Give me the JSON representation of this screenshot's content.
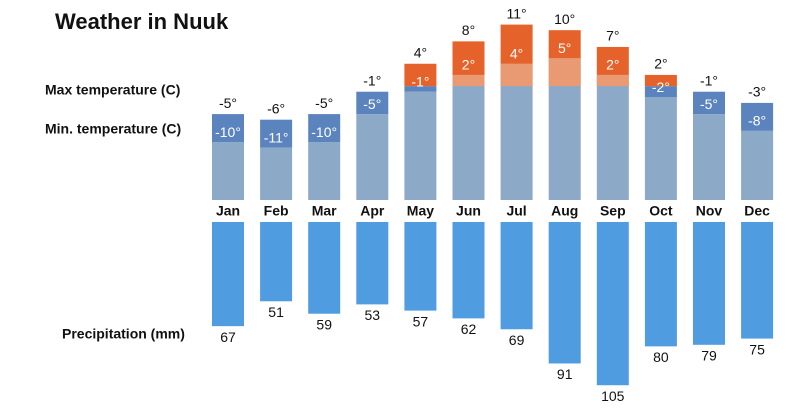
{
  "chart_data": [
    {
      "type": "range-bar",
      "title": "Weather in Nuuk",
      "categories": [
        "Jan",
        "Feb",
        "Mar",
        "Apr",
        "May",
        "Jun",
        "Jul",
        "Aug",
        "Sep",
        "Oct",
        "Nov",
        "Dec"
      ],
      "series": [
        {
          "name": "Max temperature (C)",
          "color": "#e5622a",
          "values": [
            -5,
            -6,
            -5,
            -1,
            4,
            8,
            11,
            10,
            7,
            2,
            -1,
            -3
          ],
          "value_labels": [
            "-5°",
            "-6°",
            "-5°",
            "-1°",
            "4°",
            "8°",
            "11°",
            "10°",
            "7°",
            "2°",
            "-1°",
            "-3°"
          ]
        },
        {
          "name": "Min. temperature (C)",
          "color": "#5b84bf",
          "values": [
            -10,
            -11,
            -10,
            -5,
            -1,
            2,
            4,
            5,
            2,
            -2,
            -5,
            -8
          ],
          "value_labels": [
            "-10°",
            "-11°",
            "-10°",
            "-5°",
            "-1°",
            "2°",
            "4°",
            "5°",
            "2°",
            "-2°",
            "-5°",
            "-8°"
          ]
        }
      ],
      "ylim": [
        -20,
        12
      ]
    },
    {
      "type": "bar",
      "series": [
        {
          "name": "Precipitation (mm)",
          "color": "#4f9de0",
          "values": [
            67,
            51,
            59,
            53,
            57,
            62,
            69,
            91,
            105,
            80,
            79,
            75
          ]
        }
      ],
      "ylim": [
        0,
        110
      ]
    }
  ]
}
